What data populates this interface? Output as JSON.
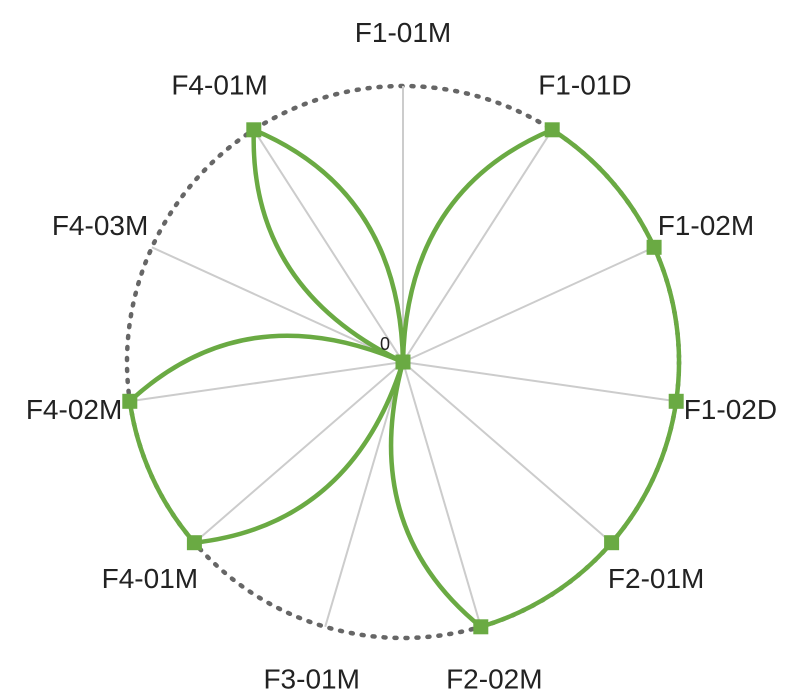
{
  "chart_data": {
    "type": "radar",
    "title": "",
    "categories": [
      "F1-01M",
      "F1-01D",
      "F1-02M",
      "F1-02D",
      "F2-01M",
      "F2-02M",
      "F3-01M",
      "F4-01M",
      "F4-02M",
      "F4-03M",
      "F4-01M"
    ],
    "center_label": "0",
    "radial_range": [
      0,
      1
    ],
    "grid": true,
    "outer_ring": "dotted",
    "series": [
      {
        "values": [
          0,
          1,
          1,
          1,
          1,
          1,
          0,
          1,
          1,
          0,
          1
        ]
      }
    ],
    "colors": {
      "series": "#6aaa43",
      "spoke": "#cccccc",
      "ring": "#666666",
      "text": "#222222"
    }
  }
}
